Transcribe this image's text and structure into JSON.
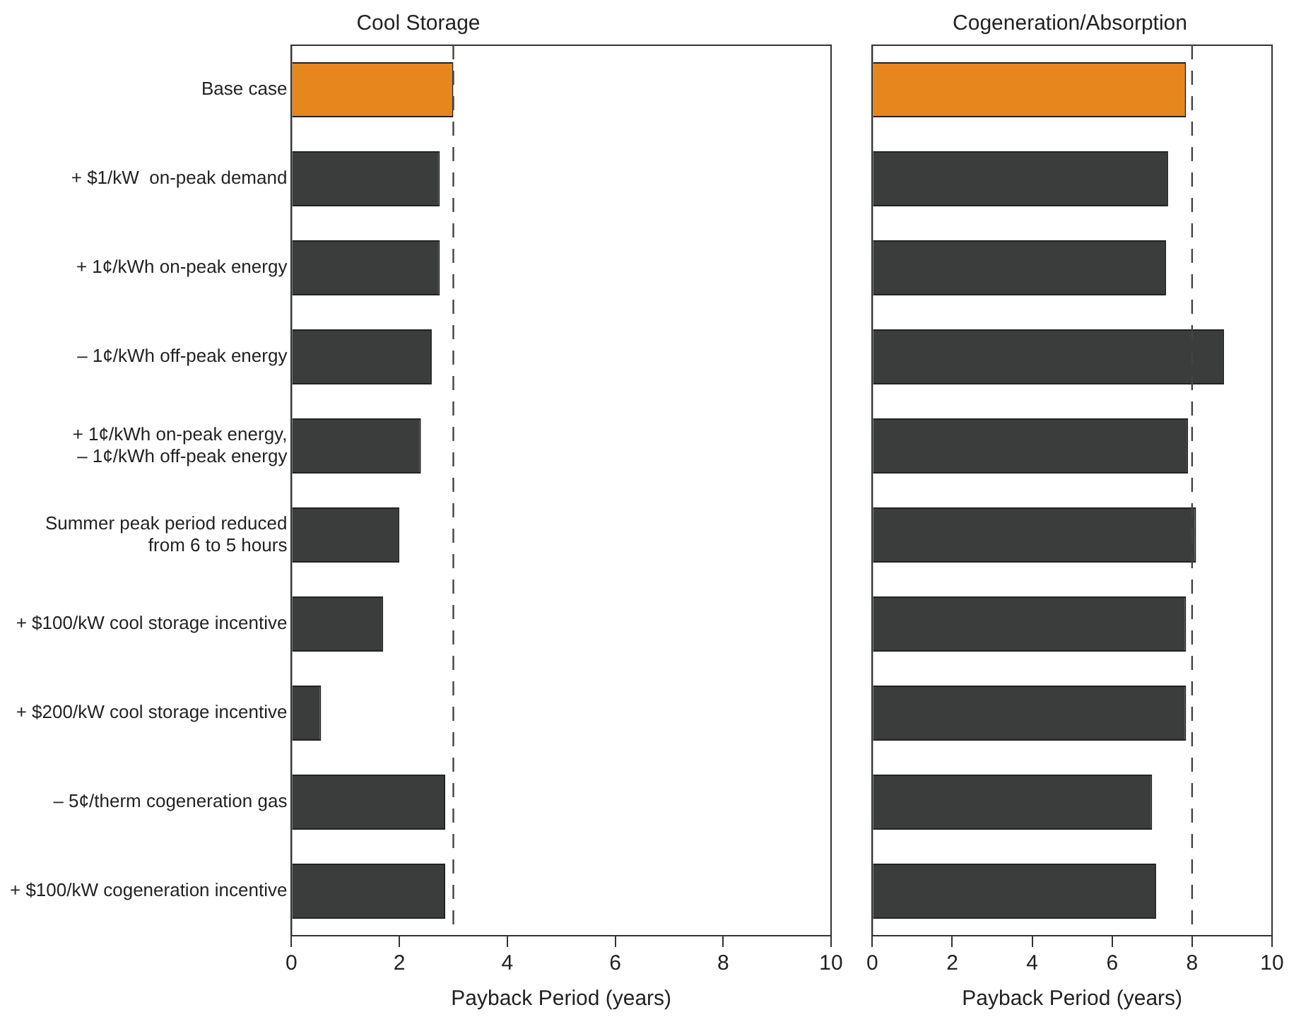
{
  "chart_data": [
    {
      "type": "bar",
      "orientation": "horizontal",
      "title": "Cool Storage",
      "xlabel": "Payback Period (years)",
      "categories": [
        "Base case",
        "+ $1/kW  on-peak demand",
        "+ 1¢/kWh on-peak energy",
        "– 1¢/kWh off-peak energy",
        "+ 1¢/kWh on-peak energy,\n– 1¢/kWh off-peak energy",
        "Summer peak period reduced\nfrom 6 to 5 hours",
        "+ $100/kW cool storage incentive",
        "+ $200/kW cool storage incentive",
        "– 5¢/therm cogeneration gas",
        "+ $100/kW cogeneration incentive"
      ],
      "values": [
        3.0,
        2.75,
        2.75,
        2.6,
        2.4,
        2.0,
        1.7,
        0.55,
        2.85,
        2.85
      ],
      "colors": [
        "#e8861e",
        "#3a3d3c",
        "#3a3d3c",
        "#3a3d3c",
        "#3a3d3c",
        "#3a3d3c",
        "#3a3d3c",
        "#3a3d3c",
        "#3a3d3c",
        "#3a3d3c"
      ],
      "xlim": [
        0,
        10
      ],
      "xticks": [
        0,
        2,
        4,
        6,
        8,
        10
      ],
      "grid": false,
      "ref_lines": [
        {
          "axis": "x",
          "value": 3,
          "line_style": "dashed",
          "color": "#444444"
        }
      ]
    },
    {
      "type": "bar",
      "orientation": "horizontal",
      "title": "Cogeneration/Absorption",
      "xlabel": "Payback Period (years)",
      "categories": [
        null,
        null,
        null,
        null,
        null,
        null,
        null,
        null,
        null,
        null
      ],
      "values": [
        7.85,
        7.4,
        7.35,
        8.8,
        7.9,
        8.1,
        7.85,
        7.85,
        7.0,
        7.1
      ],
      "colors": [
        "#e8861e",
        "#3a3d3c",
        "#3a3d3c",
        "#3a3d3c",
        "#3a3d3c",
        "#3a3d3c",
        "#3a3d3c",
        "#3a3d3c",
        "#3a3d3c",
        "#3a3d3c"
      ],
      "xlim": [
        0,
        10
      ],
      "xticks": [
        0,
        2,
        4,
        6,
        8,
        10
      ],
      "grid": false,
      "tick_labels": "x",
      "ref_lines": [
        {
          "axis": "x",
          "value": 8,
          "line_style": "dashed",
          "color": "#444444"
        }
      ]
    }
  ]
}
